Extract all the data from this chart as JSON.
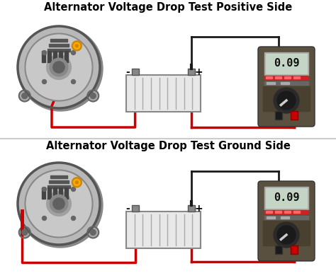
{
  "title1": "Alternator Voltage Drop Test Positive Side",
  "title2": "Alternator Voltage Drop Test Ground Side",
  "bg_color": "#ffffff",
  "title_color": "#000000",
  "title_fontsize": 10.5,
  "title_fontweight": "bold",
  "display_value": "0.09",
  "wire_red": "#cc0000",
  "wire_black": "#1a1a1a",
  "meter_body": "#5a5040",
  "meter_display_bg": "#c8d8c0",
  "meter_display_border": "#888888",
  "meter_display_text": "#111111",
  "alternator_outer": "#c0c0c0",
  "alternator_mid": "#a0a0a0",
  "alternator_inner": "#909090",
  "alternator_hub": "#808080",
  "battery_body": "#e8e8e8",
  "battery_border": "#888888",
  "terminal_color": "#c08000",
  "panel_divider": "#cccccc"
}
